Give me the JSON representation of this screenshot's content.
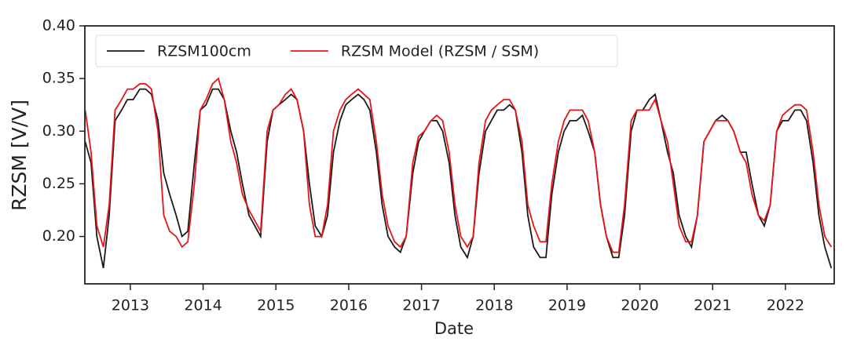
{
  "chart_data": {
    "type": "line",
    "xlabel": "Date",
    "ylabel": "RZSM [V/V]",
    "x": [
      2012.38,
      2012.46,
      2012.54,
      2012.63,
      2012.71,
      2012.79,
      2012.88,
      2012.96,
      2013.04,
      2013.13,
      2013.21,
      2013.29,
      2013.38,
      2013.46,
      2013.54,
      2013.63,
      2013.71,
      2013.79,
      2013.88,
      2013.96,
      2014.04,
      2014.13,
      2014.21,
      2014.29,
      2014.38,
      2014.46,
      2014.54,
      2014.63,
      2014.71,
      2014.79,
      2014.88,
      2014.96,
      2015.04,
      2015.13,
      2015.21,
      2015.29,
      2015.38,
      2015.46,
      2015.54,
      2015.63,
      2015.71,
      2015.79,
      2015.88,
      2015.96,
      2016.04,
      2016.13,
      2016.21,
      2016.29,
      2016.38,
      2016.46,
      2016.54,
      2016.63,
      2016.71,
      2016.79,
      2016.88,
      2016.96,
      2017.04,
      2017.13,
      2017.21,
      2017.29,
      2017.38,
      2017.46,
      2017.54,
      2017.63,
      2017.71,
      2017.79,
      2017.88,
      2017.96,
      2018.04,
      2018.13,
      2018.21,
      2018.29,
      2018.38,
      2018.46,
      2018.54,
      2018.63,
      2018.71,
      2018.79,
      2018.88,
      2018.96,
      2019.04,
      2019.13,
      2019.21,
      2019.29,
      2019.38,
      2019.46,
      2019.54,
      2019.63,
      2019.71,
      2019.79,
      2019.88,
      2019.96,
      2020.04,
      2020.13,
      2020.21,
      2020.29,
      2020.38,
      2020.46,
      2020.54,
      2020.63,
      2020.71,
      2020.79,
      2020.88,
      2020.96,
      2021.04,
      2021.13,
      2021.21,
      2021.29,
      2021.38,
      2021.46,
      2021.54,
      2021.63,
      2021.71,
      2021.79,
      2021.88,
      2021.96,
      2022.04,
      2022.13,
      2022.21,
      2022.29,
      2022.38,
      2022.46,
      2022.54,
      2022.63
    ],
    "series": [
      {
        "name": "RZSM100cm",
        "color": "#1a1a1a",
        "values": [
          0.29,
          0.27,
          0.2,
          0.17,
          0.22,
          0.31,
          0.32,
          0.33,
          0.33,
          0.34,
          0.34,
          0.335,
          0.31,
          0.26,
          0.24,
          0.22,
          0.2,
          0.205,
          0.27,
          0.32,
          0.325,
          0.34,
          0.34,
          0.33,
          0.3,
          0.28,
          0.25,
          0.22,
          0.21,
          0.2,
          0.29,
          0.32,
          0.325,
          0.33,
          0.335,
          0.33,
          0.3,
          0.25,
          0.21,
          0.2,
          0.22,
          0.28,
          0.31,
          0.325,
          0.33,
          0.335,
          0.33,
          0.32,
          0.28,
          0.23,
          0.2,
          0.19,
          0.185,
          0.2,
          0.26,
          0.29,
          0.3,
          0.31,
          0.31,
          0.3,
          0.27,
          0.22,
          0.19,
          0.18,
          0.2,
          0.26,
          0.3,
          0.31,
          0.32,
          0.32,
          0.325,
          0.32,
          0.28,
          0.22,
          0.19,
          0.18,
          0.18,
          0.24,
          0.28,
          0.3,
          0.31,
          0.31,
          0.315,
          0.3,
          0.28,
          0.23,
          0.2,
          0.18,
          0.18,
          0.22,
          0.3,
          0.32,
          0.32,
          0.33,
          0.335,
          0.31,
          0.28,
          0.26,
          0.22,
          0.2,
          0.19,
          0.22,
          0.29,
          0.3,
          0.31,
          0.315,
          0.31,
          0.3,
          0.28,
          0.28,
          0.25,
          0.22,
          0.21,
          0.23,
          0.3,
          0.31,
          0.31,
          0.32,
          0.32,
          0.31,
          0.27,
          0.22,
          0.19,
          0.17
        ]
      },
      {
        "name": "RZSM Model (RZSM / SSM)",
        "color": "#e8141a",
        "values": [
          0.32,
          0.28,
          0.21,
          0.19,
          0.23,
          0.32,
          0.33,
          0.34,
          0.34,
          0.345,
          0.345,
          0.34,
          0.3,
          0.22,
          0.205,
          0.2,
          0.19,
          0.195,
          0.25,
          0.32,
          0.33,
          0.345,
          0.35,
          0.33,
          0.29,
          0.27,
          0.24,
          0.225,
          0.215,
          0.205,
          0.3,
          0.32,
          0.325,
          0.335,
          0.34,
          0.33,
          0.3,
          0.23,
          0.2,
          0.2,
          0.23,
          0.3,
          0.32,
          0.33,
          0.335,
          0.34,
          0.335,
          0.33,
          0.29,
          0.24,
          0.21,
          0.195,
          0.19,
          0.2,
          0.27,
          0.295,
          0.3,
          0.31,
          0.315,
          0.31,
          0.28,
          0.23,
          0.2,
          0.19,
          0.2,
          0.27,
          0.31,
          0.32,
          0.325,
          0.33,
          0.33,
          0.32,
          0.29,
          0.23,
          0.21,
          0.195,
          0.195,
          0.25,
          0.29,
          0.31,
          0.32,
          0.32,
          0.32,
          0.31,
          0.28,
          0.23,
          0.2,
          0.185,
          0.185,
          0.23,
          0.31,
          0.32,
          0.32,
          0.32,
          0.33,
          0.31,
          0.29,
          0.25,
          0.21,
          0.195,
          0.195,
          0.22,
          0.29,
          0.3,
          0.31,
          0.31,
          0.31,
          0.3,
          0.28,
          0.27,
          0.24,
          0.22,
          0.215,
          0.23,
          0.3,
          0.315,
          0.32,
          0.325,
          0.325,
          0.32,
          0.28,
          0.23,
          0.2,
          0.19
        ]
      }
    ],
    "xlim": [
      2012.375,
      2022.67
    ],
    "xticks": [
      2013,
      2014,
      2015,
      2016,
      2017,
      2018,
      2019,
      2020,
      2021,
      2022
    ],
    "ylim": [
      0.155,
      0.4
    ],
    "yticks": [
      {
        "value": 0.2,
        "label": "0.20"
      },
      0.25,
      {
        "value": 0.3,
        "label": "0.30"
      },
      0.35,
      {
        "value": 0.4,
        "label": "0.40"
      }
    ],
    "legend": "upper left"
  }
}
